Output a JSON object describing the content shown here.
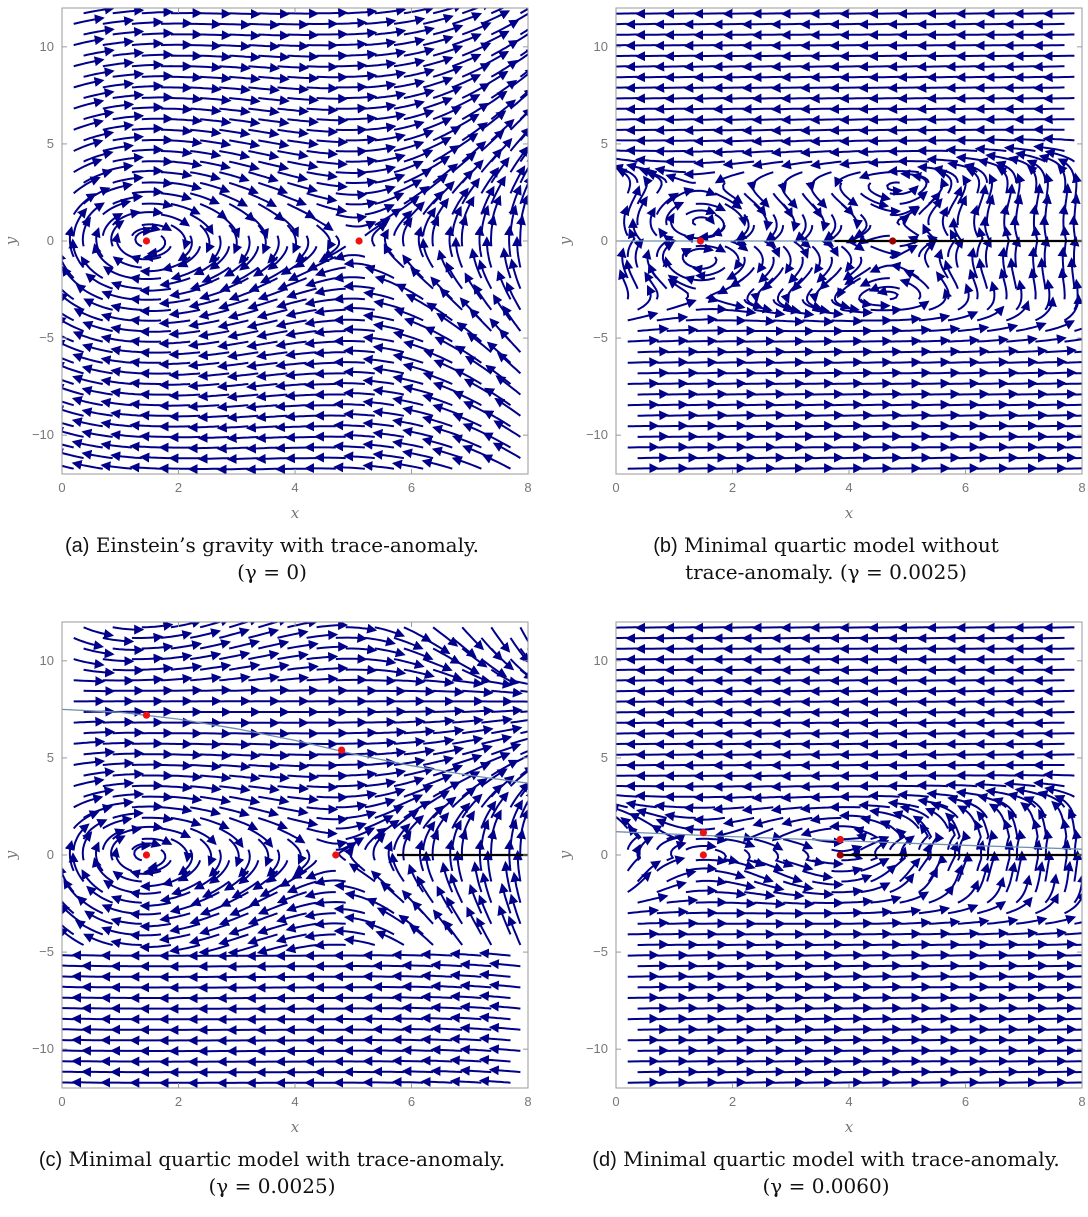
{
  "colors": {
    "stream": "#00008b",
    "point": "#ee1111",
    "point_dark": "#990000",
    "curve": "#6f8fb0",
    "line": "#000000",
    "frame": "#9a9a9a"
  },
  "panels": [
    {
      "caption_label": "(a)",
      "caption_text": "Einstein’s gravity with trace-anomaly.",
      "caption_param": "(γ = 0)",
      "chart_data": {
        "type": "stream",
        "xlabel": "x",
        "ylabel": "y",
        "xlim": [
          0,
          8
        ],
        "ylim": [
          -12,
          12
        ],
        "xticks": [
          0,
          2,
          4,
          6,
          8
        ],
        "yticks": [
          -10,
          -5,
          0,
          5,
          10
        ],
        "fixed_points": [
          {
            "x": 1.45,
            "y": 0,
            "color": "red"
          },
          {
            "x": 5.1,
            "y": 0,
            "color": "red"
          }
        ],
        "curve": null,
        "black_line": null
      }
    },
    {
      "caption_label": "(b)",
      "caption_text": "Minimal quartic model without",
      "caption_param": "trace-anomaly. (γ = 0.0025)",
      "chart_data": {
        "type": "stream",
        "xlabel": "x",
        "ylabel": "y",
        "xlim": [
          0,
          8
        ],
        "ylim": [
          -12,
          12
        ],
        "xticks": [
          0,
          2,
          4,
          6,
          8
        ],
        "yticks": [
          -10,
          -5,
          0,
          5,
          10
        ],
        "fixed_points": [
          {
            "x": 1.45,
            "y": 0,
            "color": "red"
          },
          {
            "x": 4.75,
            "y": 0,
            "color": "dark"
          }
        ],
        "curve": {
          "points": [
            [
              0,
              0
            ],
            [
              3.75,
              0
            ]
          ]
        },
        "black_line": {
          "x_from": 3.75,
          "x_to": 8,
          "y": 0
        }
      }
    },
    {
      "caption_label": "(c)",
      "caption_text": "Minimal quartic model with trace-anomaly.",
      "caption_param": "(γ = 0.0025)",
      "chart_data": {
        "type": "stream",
        "xlabel": "x",
        "ylabel": "y",
        "xlim": [
          0,
          8
        ],
        "ylim": [
          -12,
          12
        ],
        "xticks": [
          0,
          2,
          4,
          6,
          8
        ],
        "yticks": [
          -10,
          -5,
          0,
          5,
          10
        ],
        "fixed_points": [
          {
            "x": 1.45,
            "y": 0,
            "color": "red"
          },
          {
            "x": 4.7,
            "y": 0,
            "color": "red"
          },
          {
            "x": 1.45,
            "y": 7.2,
            "color": "red"
          },
          {
            "x": 4.8,
            "y": 5.4,
            "color": "red"
          }
        ],
        "curve": {
          "points": [
            [
              0,
              7.5
            ],
            [
              1,
              7.35
            ],
            [
              2,
              7.0
            ],
            [
              3,
              6.5
            ],
            [
              4,
              5.9
            ],
            [
              5,
              5.2
            ],
            [
              6,
              4.6
            ],
            [
              7,
              4.1
            ],
            [
              8,
              3.7
            ]
          ]
        },
        "black_line": {
          "x_from": 5.75,
          "x_to": 8,
          "y": 0
        }
      }
    },
    {
      "caption_label": "(d)",
      "caption_text": "Minimal quartic model with trace-anomaly.",
      "caption_param": "(γ = 0.0060)",
      "chart_data": {
        "type": "stream",
        "xlabel": "x",
        "ylabel": "y",
        "xlim": [
          0,
          8
        ],
        "ylim": [
          -12,
          12
        ],
        "xticks": [
          0,
          2,
          4,
          6,
          8
        ],
        "yticks": [
          -10,
          -5,
          0,
          5,
          10
        ],
        "fixed_points": [
          {
            "x": 1.5,
            "y": 0,
            "color": "red"
          },
          {
            "x": 1.5,
            "y": 1.15,
            "color": "red"
          },
          {
            "x": 3.85,
            "y": 0.8,
            "color": "red"
          },
          {
            "x": 3.85,
            "y": 0,
            "color": "dark"
          }
        ],
        "curve": {
          "points": [
            [
              0,
              1.2
            ],
            [
              2,
              0.95
            ],
            [
              4,
              0.72
            ],
            [
              6,
              0.5
            ],
            [
              8,
              0.3
            ]
          ]
        },
        "black_line": {
          "x_from": 3.85,
          "x_to": 8,
          "y": 0
        }
      }
    }
  ]
}
